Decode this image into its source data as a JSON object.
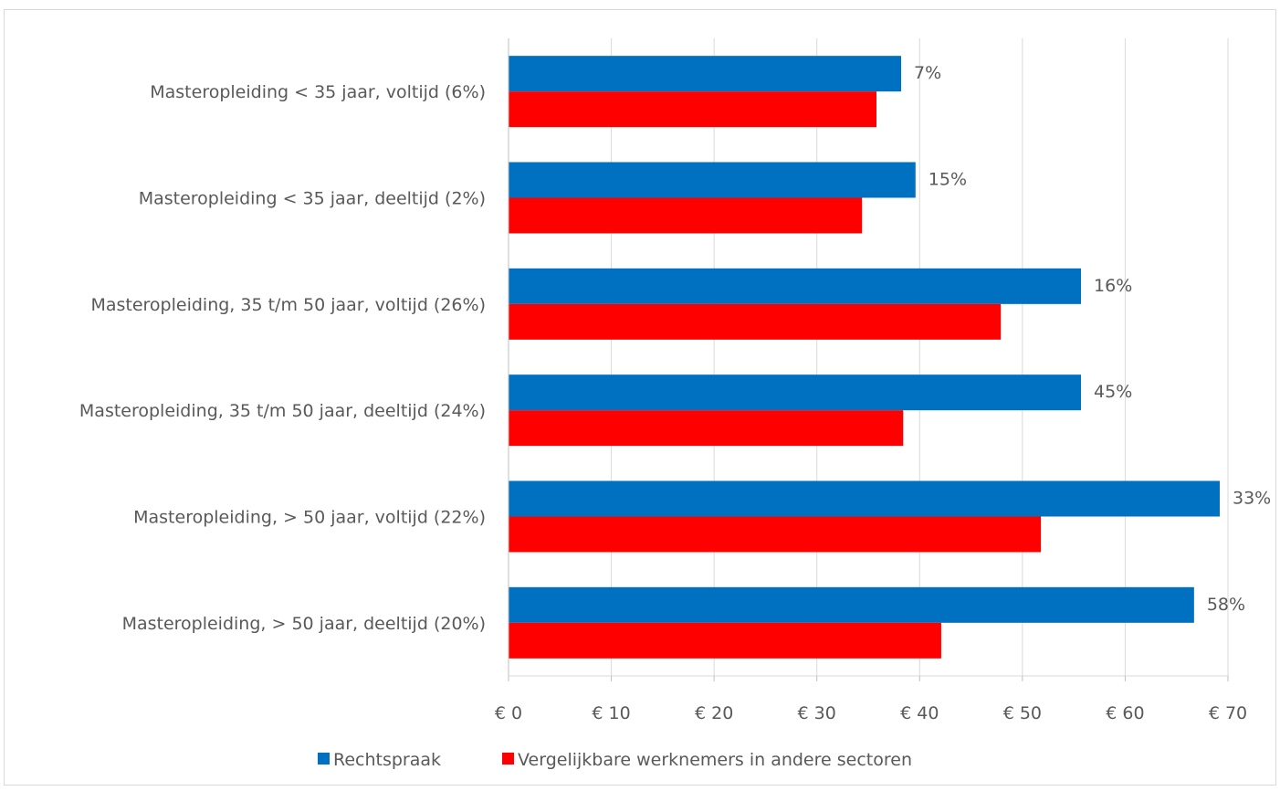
{
  "chart_data": {
    "type": "bar",
    "orientation": "horizontal",
    "categories": [
      "Masteropleiding < 35 jaar, voltijd (6%)",
      "Masteropleiding < 35 jaar, deeltijd (2%)",
      "Masteropleiding, 35 t/m 50 jaar, voltijd (26%)",
      "Masteropleiding, 35 t/m 50 jaar, deeltijd (24%)",
      "Masteropleiding, > 50 jaar, voltijd (22%)",
      "Masteropleiding, > 50 jaar, deeltijd (20%)"
    ],
    "series": [
      {
        "name": "Rechtspraak",
        "color": "#0070c0",
        "values": [
          38.2,
          39.6,
          55.7,
          55.7,
          69.2,
          66.7
        ],
        "data_labels": [
          "7%",
          "15%",
          "16%",
          "45%",
          "33%",
          "58%"
        ]
      },
      {
        "name": "Vergelijkbare werknemers in andere sectoren",
        "color": "#ff0000",
        "values": [
          35.8,
          34.4,
          47.9,
          38.4,
          51.8,
          42.1
        ]
      }
    ],
    "xlim": [
      0,
      70
    ],
    "xticks": [
      0,
      10,
      20,
      30,
      40,
      50,
      60,
      70
    ],
    "xtick_labels": [
      "€ 0",
      "€ 10",
      "€ 20",
      "€ 30",
      "€ 40",
      "€ 50",
      "€ 60",
      "€ 70"
    ],
    "grid": true,
    "legend_position": "bottom"
  }
}
